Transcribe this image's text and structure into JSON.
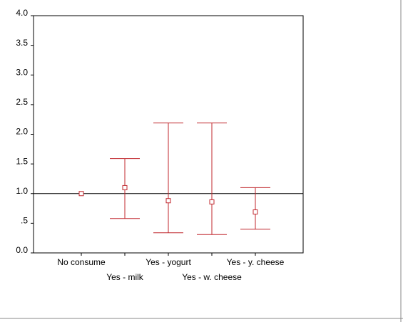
{
  "chart_data": {
    "type": "errorbar",
    "categories": [
      "No consume",
      "Yes - milk",
      "Yes - yogurt",
      "Yes - w. cheese",
      "Yes - y. cheese"
    ],
    "values": [
      1.0,
      1.1,
      0.88,
      0.86,
      0.69
    ],
    "lower": [
      null,
      0.58,
      0.34,
      0.31,
      0.4
    ],
    "upper": [
      null,
      1.59,
      2.19,
      2.19,
      1.1
    ],
    "color": "#c0272d",
    "reference_line": 1.0,
    "ylim": [
      0,
      4
    ],
    "yticks": [
      {
        "value": 0,
        "label": "0.0"
      },
      {
        "value": 0.5,
        "label": ".5"
      },
      {
        "value": 1,
        "label": "1.0"
      },
      {
        "value": 1.5,
        "label": "1.5"
      },
      {
        "value": 2,
        "label": "2.0"
      },
      {
        "value": 2.5,
        "label": "2.5"
      },
      {
        "value": 3,
        "label": "3.0"
      },
      {
        "value": 3.5,
        "label": "3.5"
      },
      {
        "value": 4,
        "label": "4.0"
      }
    ]
  }
}
